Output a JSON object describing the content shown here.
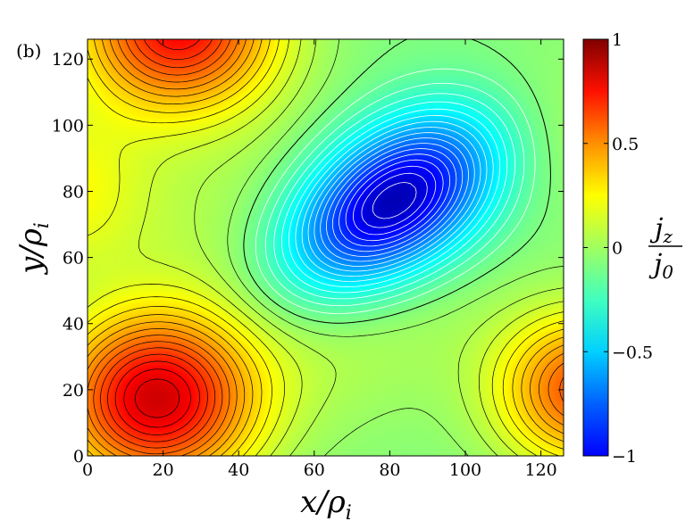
{
  "chart_data": {
    "type": "heatmap",
    "panel_label": "(b)",
    "title": "",
    "xlabel": "x/ρ_i",
    "ylabel": "y/ρ_i",
    "xlim": [
      0,
      126
    ],
    "ylim": [
      0,
      126
    ],
    "x_ticks": [
      0,
      20,
      40,
      60,
      80,
      100,
      120
    ],
    "y_ticks": [
      0,
      20,
      40,
      60,
      80,
      100,
      120
    ],
    "colorbar": {
      "label": "j_z/j_0",
      "range": [
        -1,
        1
      ],
      "ticks": [
        -1,
        -0.5,
        0,
        0.5,
        1
      ],
      "tick_labels": [
        "−1",
        "−0.5",
        "0",
        "0.5",
        "1"
      ],
      "colormap": "jet"
    },
    "features": [
      {
        "kind": "minimum",
        "x": 80,
        "y": 76,
        "value": -1.0
      },
      {
        "kind": "maximum",
        "x": 18,
        "y": 17,
        "value": 0.82
      },
      {
        "kind": "maximum",
        "x": 24,
        "y": 130,
        "value": 0.75
      },
      {
        "kind": "maximum",
        "x": 132,
        "y": 20,
        "value": 0.6
      },
      {
        "kind": "maximum",
        "x": -8,
        "y": 80,
        "value": 0.25
      }
    ],
    "contours": {
      "positive_color": "#000000",
      "negative_color": "#ffffff",
      "zero_style": "dashed"
    }
  }
}
